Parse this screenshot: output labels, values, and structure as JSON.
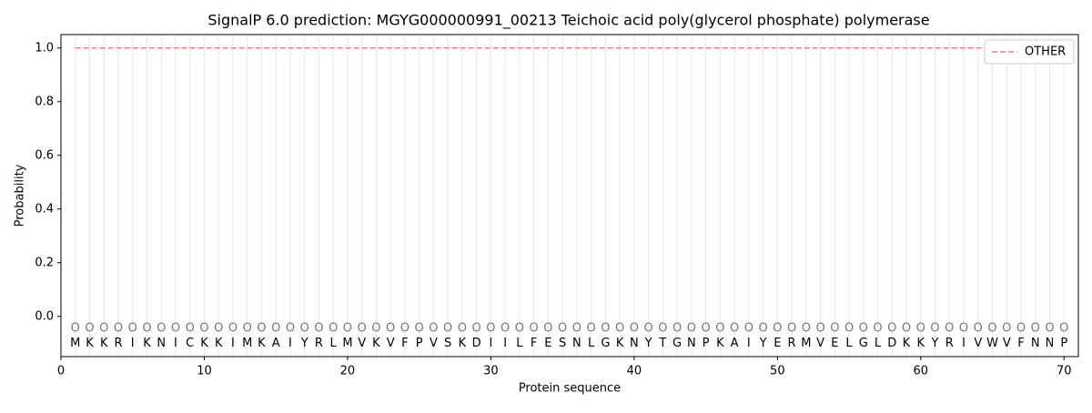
{
  "chart_data": {
    "type": "line",
    "title": "SignalP 6.0 prediction: MGYG000000991_00213 Teichoic acid poly(glycerol phosphate) polymerase",
    "x_label": "Protein sequence",
    "y_label": "Probability",
    "x": [
      1,
      2,
      3,
      4,
      5,
      6,
      7,
      8,
      9,
      10,
      11,
      12,
      13,
      14,
      15,
      16,
      17,
      18,
      19,
      20,
      21,
      22,
      23,
      24,
      25,
      26,
      27,
      28,
      29,
      30,
      31,
      32,
      33,
      34,
      35,
      36,
      37,
      38,
      39,
      40,
      41,
      42,
      43,
      44,
      45,
      46,
      47,
      48,
      49,
      50,
      51,
      52,
      53,
      54,
      55,
      56,
      57,
      58,
      59,
      60,
      61,
      62,
      63,
      64,
      65,
      66,
      67,
      68,
      69,
      70
    ],
    "sequence": [
      "M",
      "K",
      "K",
      "R",
      "I",
      "K",
      "N",
      "I",
      "C",
      "K",
      "K",
      "I",
      "M",
      "K",
      "A",
      "I",
      "Y",
      "R",
      "L",
      "M",
      "V",
      "K",
      "V",
      "F",
      "P",
      "V",
      "S",
      "K",
      "D",
      "I",
      "I",
      "L",
      "F",
      "E",
      "S",
      "N",
      "L",
      "G",
      "K",
      "N",
      "Y",
      "T",
      "G",
      "N",
      "P",
      "K",
      "A",
      "I",
      "Y",
      "E",
      "R",
      "M",
      "V",
      "E",
      "L",
      "G",
      "L",
      "D",
      "K",
      "K",
      "Y",
      "R",
      "I",
      "V",
      "W",
      "V",
      "F",
      "N",
      "N",
      "P"
    ],
    "predicted_labels": [
      "O",
      "O",
      "O",
      "O",
      "O",
      "O",
      "O",
      "O",
      "O",
      "O",
      "O",
      "O",
      "O",
      "O",
      "O",
      "O",
      "O",
      "O",
      "O",
      "O",
      "O",
      "O",
      "O",
      "O",
      "O",
      "O",
      "O",
      "O",
      "O",
      "O",
      "O",
      "O",
      "O",
      "O",
      "O",
      "O",
      "O",
      "O",
      "O",
      "O",
      "O",
      "O",
      "O",
      "O",
      "O",
      "O",
      "O",
      "O",
      "O",
      "O",
      "O",
      "O",
      "O",
      "O",
      "O",
      "O",
      "O",
      "O",
      "O",
      "O",
      "O",
      "O",
      "O",
      "O",
      "O",
      "O",
      "O",
      "O",
      "O",
      "O"
    ],
    "series": [
      {
        "name": "OTHER",
        "color": "#f08080",
        "dashed": true,
        "values": [
          1,
          1,
          1,
          1,
          1,
          1,
          1,
          1,
          1,
          1,
          1,
          1,
          1,
          1,
          1,
          1,
          1,
          1,
          1,
          1,
          1,
          1,
          1,
          1,
          1,
          1,
          1,
          1,
          1,
          1,
          1,
          1,
          1,
          1,
          1,
          1,
          1,
          1,
          1,
          1,
          1,
          1,
          1,
          1,
          1,
          1,
          1,
          1,
          1,
          1,
          1,
          1,
          1,
          1,
          1,
          1,
          1,
          1,
          1,
          1,
          1,
          1,
          1,
          1,
          1,
          1,
          1,
          1,
          1,
          1
        ]
      }
    ],
    "xlim": [
      0,
      71
    ],
    "ylim": [
      -0.15,
      1.05
    ],
    "xticks": [
      0,
      10,
      20,
      30,
      40,
      50,
      60,
      70
    ],
    "yticks": [
      {
        "value": 0,
        "label": "0.0"
      },
      {
        "value": 0.2,
        "label": "0.2"
      },
      {
        "value": 0.4,
        "label": "0.4"
      },
      {
        "value": 0.6,
        "label": "0.6"
      },
      {
        "value": 0.8,
        "label": "0.8"
      },
      {
        "value": 1,
        "label": "1.0"
      }
    ],
    "legend": "upper right"
  }
}
